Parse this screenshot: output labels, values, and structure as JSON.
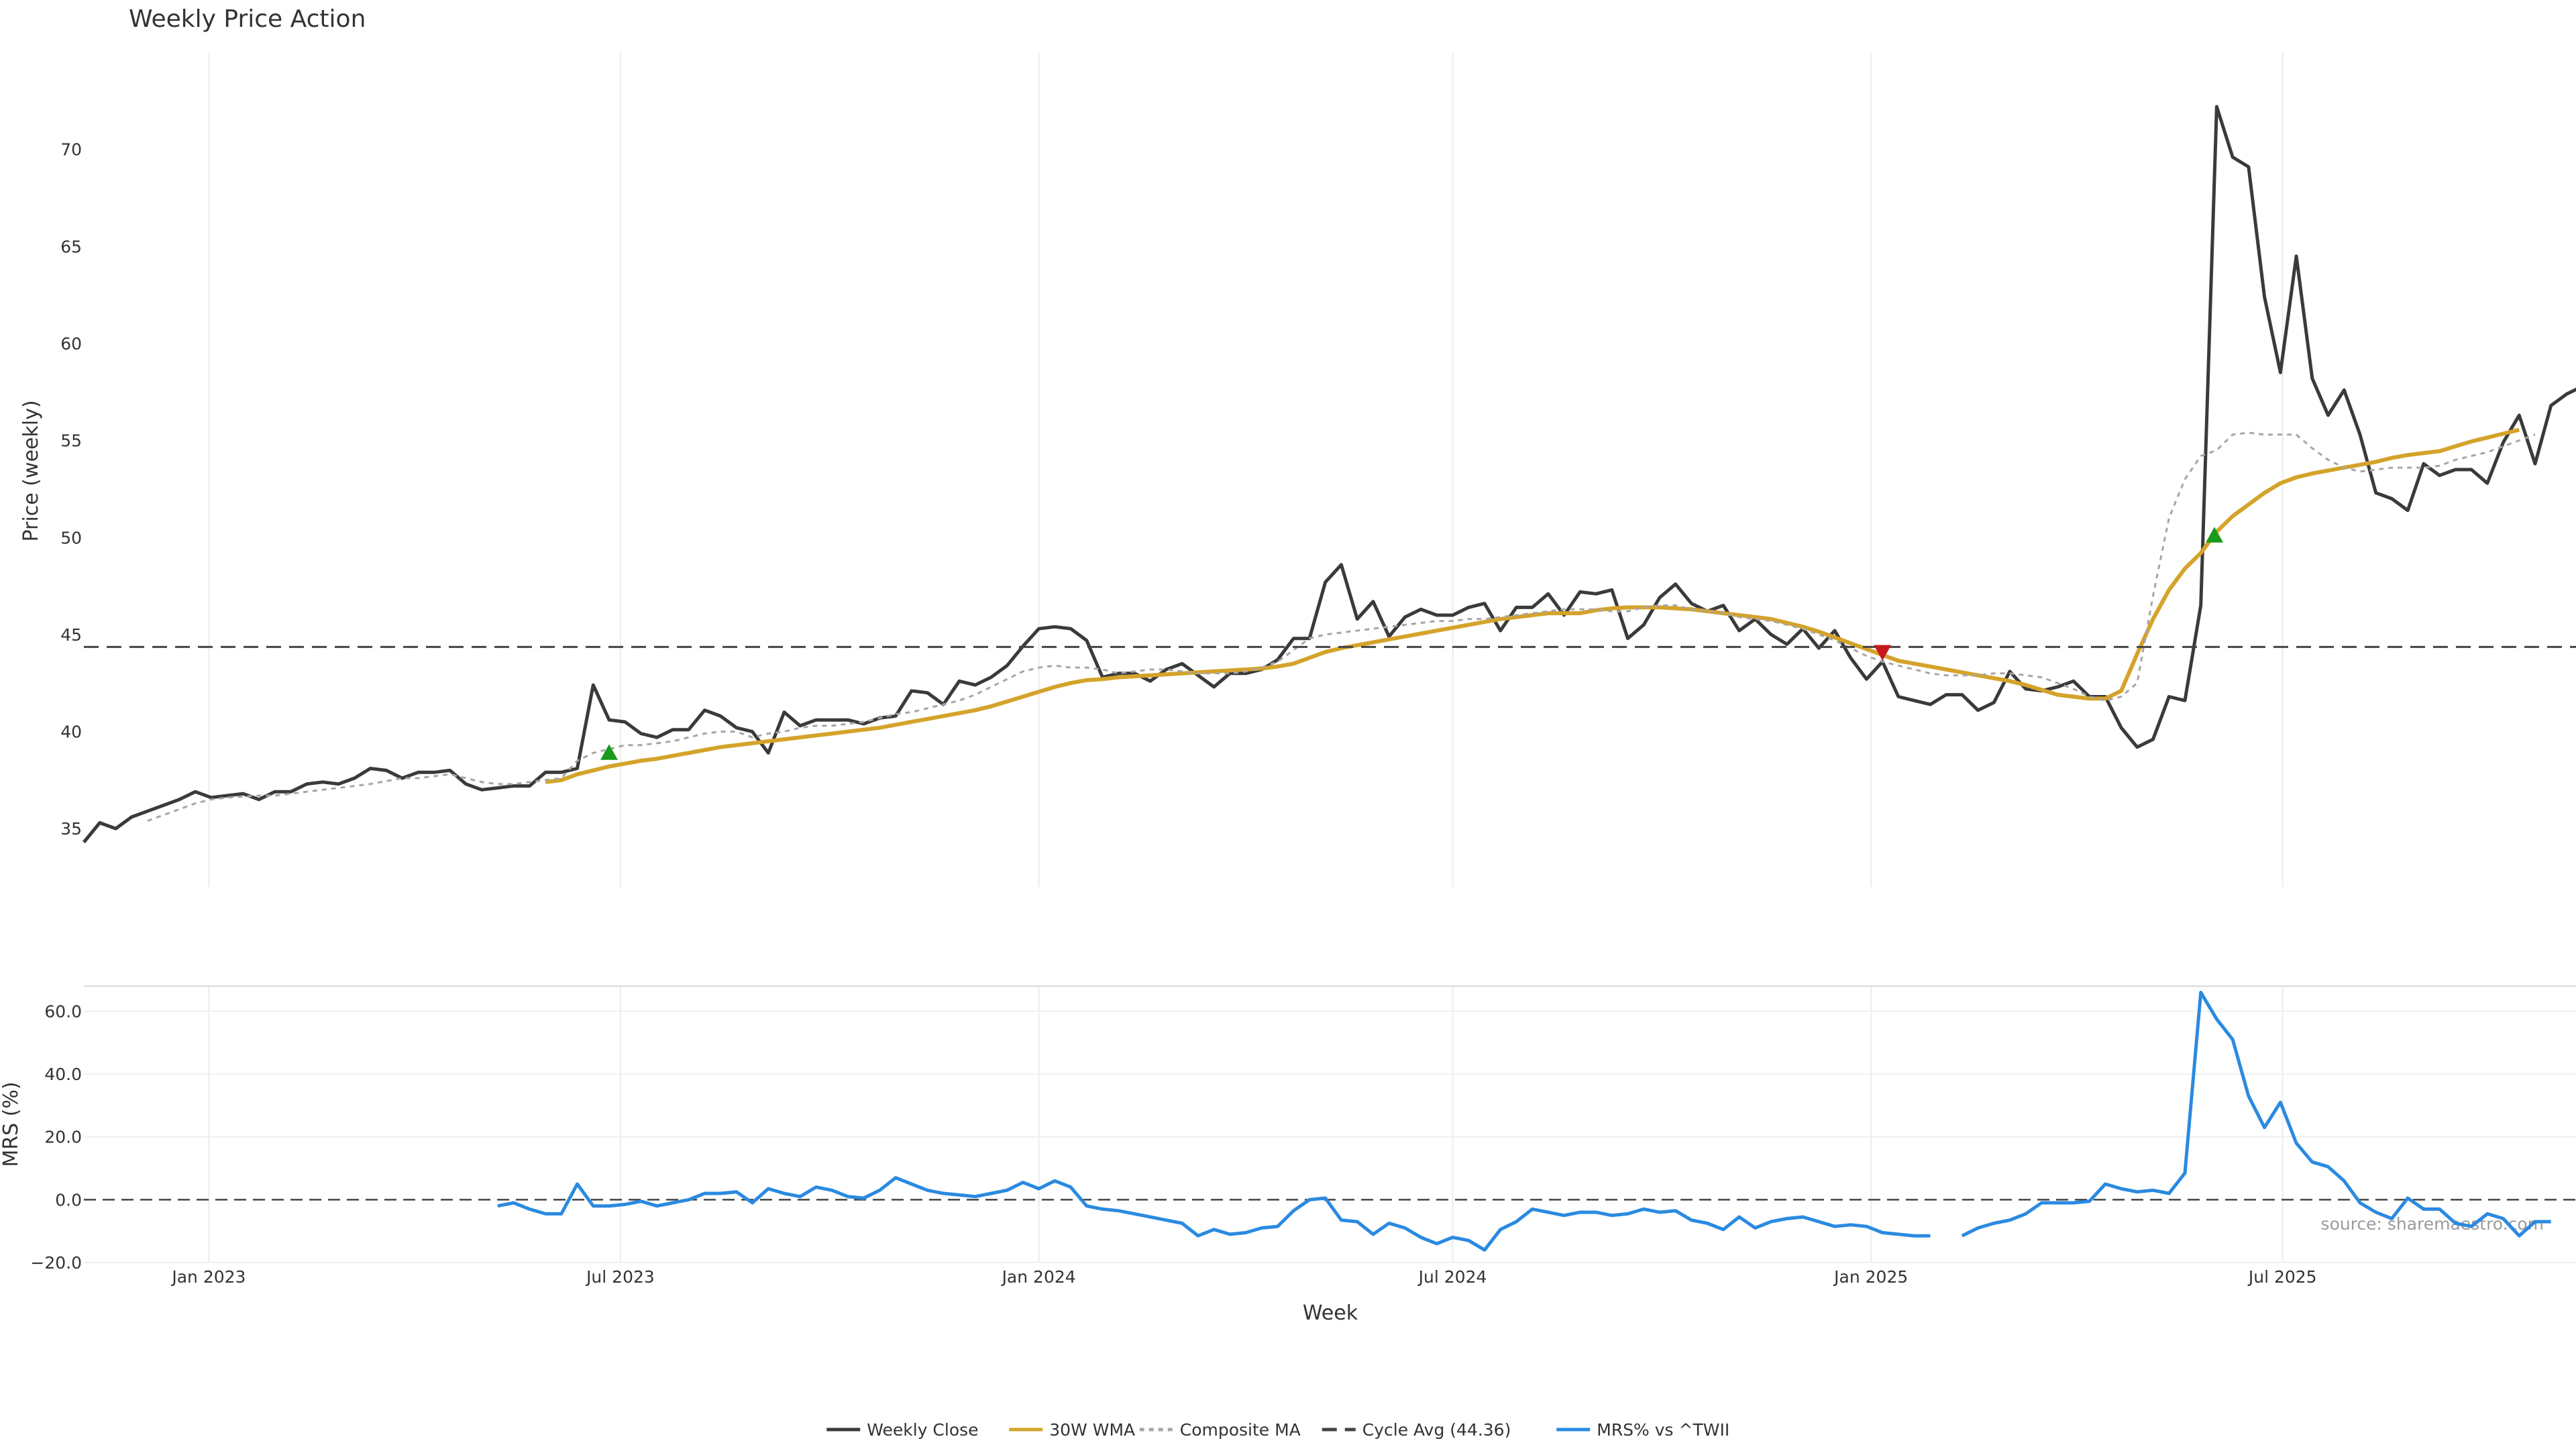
{
  "chart_data": [
    {
      "type": "line",
      "title": "Weekly Price Action",
      "ylabel": "Price (weekly)",
      "ylim": [
        32,
        75
      ],
      "yticks": [
        35,
        40,
        45,
        50,
        55,
        60,
        65,
        70
      ],
      "xlim": [
        "2022-11-07",
        "2025-11-07"
      ],
      "x_start": "2022-11-07",
      "x_step_days": 7,
      "grid": "vertical",
      "series": [
        {
          "name": "Weekly Close",
          "color": "#3a3a3a",
          "style": "solid",
          "values": [
            34.3,
            35.3,
            35.0,
            35.6,
            35.9,
            36.2,
            36.5,
            36.9,
            36.6,
            36.7,
            36.8,
            36.5,
            36.9,
            36.9,
            37.3,
            37.4,
            37.3,
            37.6,
            38.1,
            38.0,
            37.6,
            37.9,
            37.9,
            38.0,
            37.3,
            37.0,
            37.1,
            37.2,
            37.2,
            37.9,
            37.9,
            38.1,
            42.4,
            40.6,
            40.5,
            39.9,
            39.7,
            40.1,
            40.1,
            41.1,
            40.8,
            40.2,
            40.0,
            38.9,
            41.0,
            40.3,
            40.6,
            40.6,
            40.6,
            40.4,
            40.7,
            40.8,
            42.1,
            42.0,
            41.4,
            42.6,
            42.4,
            42.8,
            43.4,
            44.4,
            45.3,
            45.4,
            45.3,
            44.7,
            42.8,
            43.0,
            43.0,
            42.6,
            43.2,
            43.5,
            42.9,
            42.3,
            43.0,
            43.0,
            43.2,
            43.7,
            44.8,
            44.8,
            47.7,
            48.6,
            45.8,
            46.7,
            44.9,
            45.9,
            46.3,
            46.0,
            46.0,
            46.4,
            46.6,
            45.2,
            46.4,
            46.4,
            47.1,
            46.0,
            47.2,
            47.1,
            47.3,
            44.8,
            45.5,
            46.9,
            47.6,
            46.6,
            46.2,
            46.5,
            45.2,
            45.8,
            45.0,
            44.5,
            45.3,
            44.3,
            45.2,
            43.8,
            42.7,
            43.6,
            41.8,
            41.6,
            41.4,
            41.9,
            41.9,
            41.1,
            41.5,
            43.1,
            42.2,
            42.1,
            42.3,
            42.6,
            41.8,
            41.8,
            40.2,
            39.2,
            39.6,
            41.8,
            41.6,
            46.5,
            72.2,
            69.6,
            69.1,
            62.4,
            58.5,
            64.5,
            58.2,
            56.3,
            57.6,
            55.3,
            52.3,
            52.0,
            51.4,
            53.8,
            53.2,
            53.5,
            53.5,
            52.8,
            54.9,
            56.3,
            53.8,
            56.8,
            57.4,
            57.8
          ]
        },
        {
          "name": "30W WMA",
          "color": "#d4a32a",
          "style": "solid",
          "start_index": 29,
          "values": [
            37.4,
            37.5,
            37.8,
            38.0,
            38.2,
            38.35,
            38.5,
            38.6,
            38.75,
            38.9,
            39.05,
            39.2,
            39.3,
            39.4,
            39.5,
            39.6,
            39.7,
            39.8,
            39.9,
            40.0,
            40.1,
            40.2,
            40.35,
            40.5,
            40.65,
            40.8,
            40.95,
            41.1,
            41.3,
            41.55,
            41.8,
            42.05,
            42.3,
            42.5,
            42.65,
            42.7,
            42.8,
            42.85,
            42.9,
            42.95,
            43.0,
            43.05,
            43.1,
            43.15,
            43.2,
            43.25,
            43.35,
            43.5,
            43.8,
            44.1,
            44.3,
            44.45,
            44.6,
            44.75,
            44.9,
            45.05,
            45.2,
            45.35,
            45.5,
            45.65,
            45.8,
            45.9,
            46.0,
            46.1,
            46.1,
            46.1,
            46.25,
            46.35,
            46.4,
            46.4,
            46.4,
            46.35,
            46.3,
            46.2,
            46.1,
            46.0,
            45.9,
            45.8,
            45.6,
            45.4,
            45.15,
            44.85,
            44.55,
            44.25,
            43.95,
            43.65,
            43.5,
            43.35,
            43.2,
            43.05,
            42.9,
            42.75,
            42.6,
            42.4,
            42.15,
            41.9,
            41.8,
            41.7,
            41.7,
            42.1,
            44.0,
            45.8,
            47.3,
            48.4,
            49.2,
            50.3,
            51.1,
            51.7,
            52.3,
            52.8,
            53.1,
            53.3,
            53.45,
            53.6,
            53.75,
            53.9,
            54.1,
            54.25,
            54.35,
            54.45,
            54.7,
            54.95,
            55.15,
            55.35,
            55.55
          ]
        },
        {
          "name": "Composite MA",
          "color": "#a6a6a6",
          "style": "dotted",
          "start_index": 4,
          "values": [
            35.4,
            35.7,
            36.0,
            36.3,
            36.5,
            36.6,
            36.65,
            36.7,
            36.7,
            36.8,
            36.9,
            37.0,
            37.1,
            37.2,
            37.3,
            37.45,
            37.6,
            37.6,
            37.7,
            37.8,
            37.6,
            37.4,
            37.3,
            37.3,
            37.4,
            37.5,
            37.6,
            38.5,
            38.9,
            39.1,
            39.3,
            39.3,
            39.4,
            39.5,
            39.7,
            39.9,
            40.0,
            40.0,
            39.7,
            39.9,
            40.0,
            40.2,
            40.3,
            40.3,
            40.4,
            40.5,
            40.7,
            40.9,
            41.0,
            41.2,
            41.4,
            41.6,
            41.9,
            42.3,
            42.7,
            43.1,
            43.3,
            43.4,
            43.3,
            43.3,
            43.2,
            43.0,
            43.1,
            43.2,
            43.2,
            43.1,
            43.0,
            43.0,
            43.0,
            43.1,
            43.3,
            43.6,
            44.2,
            44.8,
            45.0,
            45.1,
            45.2,
            45.3,
            45.4,
            45.5,
            45.6,
            45.7,
            45.7,
            45.8,
            45.8,
            45.9,
            46.0,
            46.1,
            46.2,
            46.3,
            46.3,
            46.3,
            46.2,
            46.2,
            46.4,
            46.5,
            46.5,
            46.3,
            46.2,
            46.1,
            45.9,
            45.8,
            45.7,
            45.5,
            45.3,
            45.0,
            44.7,
            44.3,
            43.9,
            43.6,
            43.4,
            43.2,
            43.0,
            42.9,
            42.9,
            42.9,
            43.0,
            43.0,
            42.9,
            42.8,
            42.5,
            42.2,
            41.8,
            41.6,
            41.8,
            42.5,
            47.0,
            51.0,
            53.0,
            54.2,
            54.5,
            55.3,
            55.4,
            55.3,
            55.3,
            55.3,
            54.6,
            54.0,
            53.6,
            53.4,
            53.5,
            53.6,
            53.6,
            53.6,
            53.7,
            54.0,
            54.2,
            54.4,
            54.7,
            55.0,
            55.3
          ]
        },
        {
          "name": "Cycle Avg (44.36)",
          "color": "#444444",
          "style": "dashed",
          "constant": 44.36
        }
      ],
      "signals": [
        {
          "date": "2023-06-26",
          "value": 38.9,
          "direction": "up",
          "color": "#1a9a1a"
        },
        {
          "date": "2025-01-06",
          "value": 44.1,
          "direction": "down",
          "color": "#c81a1a"
        },
        {
          "date": "2025-06-01",
          "value": 50.1,
          "direction": "up",
          "color": "#1a9a1a"
        }
      ]
    },
    {
      "type": "line",
      "ylabel": "MRS (%)",
      "xlabel": "Week",
      "ylim": [
        -20,
        68
      ],
      "yticks": [
        -20,
        0,
        20,
        40,
        60
      ],
      "ytick_labels": [
        "−20.0",
        "0.0",
        "20.0",
        "40.0",
        "60.0"
      ],
      "xticks": [
        {
          "date": "2023-01-01",
          "label": "Jan 2023"
        },
        {
          "date": "2023-07-01",
          "label": "Jul 2023"
        },
        {
          "date": "2024-01-01",
          "label": "Jan 2024"
        },
        {
          "date": "2024-07-01",
          "label": "Jul 2024"
        },
        {
          "date": "2025-01-01",
          "label": "Jan 2025"
        },
        {
          "date": "2025-07-01",
          "label": "Jul 2025"
        }
      ],
      "zero_line": 0,
      "series": [
        {
          "name": "MRS% vs ^TWII",
          "color": "#2a8ae0",
          "style": "solid",
          "start_index": 26,
          "gap_after_index": 116,
          "values": [
            -2,
            -1,
            -3,
            -4.5,
            -4.5,
            5,
            -2,
            -2,
            -1.5,
            -0.5,
            -2,
            -1,
            0,
            2,
            2,
            2.5,
            -1,
            3.5,
            2,
            1,
            4,
            3,
            1,
            0.5,
            3,
            7,
            5,
            3,
            2,
            1.5,
            1,
            2,
            3,
            5.5,
            3.5,
            6,
            4,
            -2,
            -3,
            -3.5,
            -4.5,
            -5.5,
            -6.5,
            -7.5,
            -11.5,
            -9.5,
            -11,
            -10.5,
            -9,
            -8.5,
            -3.5,
            0,
            0.5,
            -6.5,
            -7,
            -11,
            -7.5,
            -9,
            -12,
            -14,
            -12,
            -13,
            -16,
            -9.5,
            -7,
            -3,
            -4,
            -5,
            -4,
            -4,
            -5,
            -4.5,
            -3,
            -4,
            -3.5,
            -6.5,
            -7.5,
            -9.5,
            -5.5,
            -9,
            -7,
            -6,
            -5.5,
            -7,
            -8.5,
            -8,
            -8.5,
            -10.5,
            -11,
            -11.5,
            -11.5,
            null,
            -11.5,
            -9,
            -7.5,
            -6.5,
            -4.5,
            -1,
            -1,
            -1,
            -0.5,
            5,
            3.5,
            2.5,
            3,
            2,
            8.5,
            66,
            57.5,
            51,
            33,
            23,
            31,
            18,
            12,
            10.5,
            6,
            -1,
            -4,
            -6,
            0.5,
            -3,
            -3,
            -7.5,
            -8.5,
            -4.5,
            -6,
            -11.5,
            -7,
            -7
          ]
        }
      ]
    }
  ],
  "annotations": {
    "source": "source: sharemaestro.com"
  },
  "legend": {
    "placement": "bottom-center",
    "entries": [
      {
        "label": "Weekly Close",
        "color": "#3a3a3a",
        "style": "solid"
      },
      {
        "label": "30W WMA",
        "color": "#d4a32a",
        "style": "solid"
      },
      {
        "label": "Composite MA",
        "color": "#a6a6a6",
        "style": "dotted"
      },
      {
        "label": "Cycle Avg (44.36)",
        "color": "#444444",
        "style": "dashed"
      },
      {
        "label": "MRS% vs ^TWII",
        "color": "#2a8ae0",
        "style": "solid"
      }
    ]
  }
}
